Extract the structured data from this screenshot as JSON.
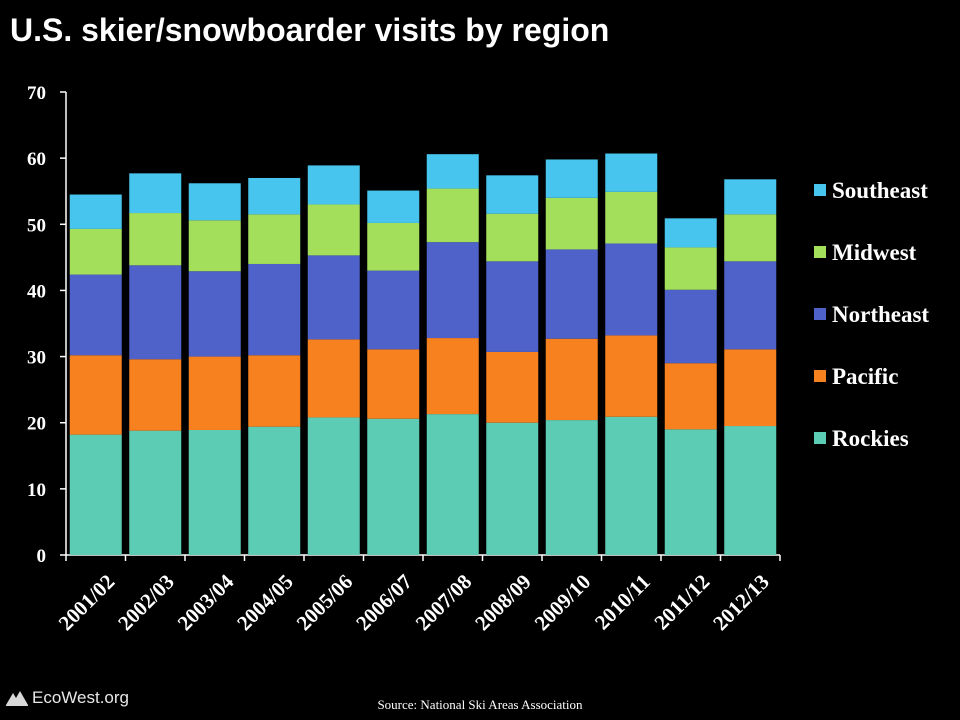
{
  "chart_data": {
    "type": "bar",
    "stacked": true,
    "title": "U.S. skier/snowboarder visits by region",
    "xlabel": "",
    "ylabel": "",
    "ylim": [
      0,
      70
    ],
    "yticks": [
      0,
      10,
      20,
      30,
      40,
      50,
      60,
      70
    ],
    "grid": false,
    "legend_position": "right",
    "categories": [
      "2001/02",
      "2002/03",
      "2003/04",
      "2004/05",
      "2005/06",
      "2006/07",
      "2007/08",
      "2008/09",
      "2009/10",
      "2010/11",
      "2011/12",
      "2012/13"
    ],
    "series": [
      {
        "name": "Rockies",
        "color": "#5cccb4",
        "values": [
          18.2,
          18.8,
          18.9,
          19.4,
          20.8,
          20.6,
          21.3,
          20.0,
          20.4,
          20.9,
          19.0,
          19.5
        ]
      },
      {
        "name": "Pacific",
        "color": "#f7801f",
        "values": [
          12.0,
          10.8,
          11.1,
          10.8,
          11.8,
          10.5,
          11.5,
          10.7,
          12.3,
          12.3,
          10.0,
          11.6
        ]
      },
      {
        "name": "Northeast",
        "color": "#4f62c9",
        "values": [
          12.2,
          14.2,
          12.9,
          13.8,
          12.7,
          11.9,
          14.5,
          13.7,
          13.5,
          13.9,
          11.1,
          13.3
        ]
      },
      {
        "name": "Midwest",
        "color": "#a3df5b",
        "values": [
          6.9,
          7.9,
          7.7,
          7.5,
          7.7,
          7.2,
          8.1,
          7.2,
          7.8,
          7.8,
          6.4,
          7.1
        ]
      },
      {
        "name": "Southeast",
        "color": "#48c5ee",
        "values": [
          5.2,
          6.0,
          5.6,
          5.5,
          5.9,
          4.9,
          5.2,
          5.8,
          5.8,
          5.8,
          4.4,
          5.3
        ]
      }
    ],
    "source": "Source:  National Ski Areas Association"
  },
  "branding": {
    "logo_text": "EcoWest.org",
    "logo_icon": "mountain-icon"
  }
}
